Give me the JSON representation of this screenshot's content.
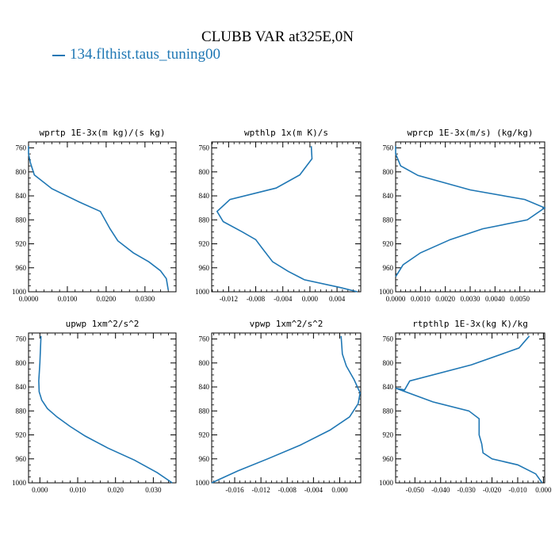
{
  "title": "CLUBB VAR at325E,0N",
  "legend": {
    "label": "134.flthist.taus_tuning00",
    "color": "#1f77b4"
  },
  "chart_data": [
    {
      "type": "line",
      "title": "wprtp  1E-3x(m kg)/(s kg)",
      "ylim": [
        1000,
        750
      ],
      "yticks": [
        760,
        800,
        840,
        880,
        920,
        960,
        1000
      ],
      "xlim": [
        0,
        0.038
      ],
      "xticks": [
        0,
        0.01,
        0.02,
        0.03
      ],
      "xticklabels": [
        "0.0000",
        "0.0100",
        "0.0200",
        "0.0300"
      ],
      "series": [
        {
          "x": [
            0.0,
            0.0,
            0.0005,
            0.0015,
            0.006,
            0.013,
            0.0185,
            0.021,
            0.023,
            0.027,
            0.031,
            0.034,
            0.0355,
            0.036
          ],
          "y": [
            757,
            770,
            785,
            805,
            828,
            850,
            866,
            895,
            915,
            935,
            950,
            965,
            978,
            997
          ]
        }
      ]
    },
    {
      "type": "line",
      "title": "wpthlp  1x(m K)/s",
      "ylim": [
        1000,
        750
      ],
      "yticks": [
        760,
        800,
        840,
        880,
        920,
        960,
        1000
      ],
      "xlim": [
        -0.0145,
        0.0075
      ],
      "xticks": [
        -0.012,
        -0.008,
        -0.004,
        0,
        0.004
      ],
      "xticklabels": [
        "-0.012",
        "-0.008",
        "-0.004",
        "0.000",
        "0.004"
      ],
      "series": [
        {
          "x": [
            0.0002,
            0.0003,
            -0.0015,
            -0.005,
            -0.0118,
            -0.0137,
            -0.0128,
            -0.01,
            -0.008,
            -0.007,
            -0.0055,
            -0.0032,
            -0.0008,
            0.0045,
            0.007
          ],
          "y": [
            757,
            778,
            805,
            827,
            846,
            866,
            883,
            900,
            913,
            928,
            950,
            966,
            980,
            993,
            1000
          ]
        }
      ]
    },
    {
      "type": "line",
      "title": "wprcp  1E-3x(m/s) (kg/kg)",
      "ylim": [
        1000,
        750
      ],
      "yticks": [
        760,
        800,
        840,
        880,
        920,
        960,
        1000
      ],
      "xlim": [
        0,
        0.006
      ],
      "xticks": [
        0,
        0.001,
        0.002,
        0.003,
        0.004,
        0.005
      ],
      "xticklabels": [
        "0.0000",
        "0.0010",
        "0.0020",
        "0.0030",
        "0.0040",
        "0.0050"
      ],
      "series": [
        {
          "x": [
            0.0,
            0.0,
            0.0002,
            0.0009,
            0.003,
            0.0052,
            0.006,
            0.0053,
            0.0035,
            0.0022,
            0.001,
            0.0003,
            0.0
          ],
          "y": [
            757,
            770,
            790,
            806,
            830,
            846,
            860,
            880,
            895,
            913,
            935,
            955,
            975
          ]
        }
      ]
    },
    {
      "type": "line",
      "title": "upwp  1xm^2/s^2",
      "ylim": [
        1000,
        750
      ],
      "yticks": [
        760,
        800,
        840,
        880,
        920,
        960,
        1000
      ],
      "xlim": [
        -0.003,
        0.036
      ],
      "xticks": [
        0,
        0.01,
        0.02,
        0.03
      ],
      "xticklabels": [
        "0.000",
        "0.010",
        "0.020",
        "0.030"
      ],
      "series": [
        {
          "x": [
            0.0003,
            0.0,
            -0.0003,
            -0.0002,
            0.0005,
            0.002,
            0.0045,
            0.008,
            0.012,
            0.018,
            0.025,
            0.031,
            0.035
          ],
          "y": [
            755,
            800,
            830,
            848,
            862,
            876,
            890,
            906,
            922,
            942,
            962,
            983,
            1000
          ]
        }
      ]
    },
    {
      "type": "line",
      "title": "vpwp  1xm^2/s^2",
      "ylim": [
        1000,
        750
      ],
      "yticks": [
        760,
        800,
        840,
        880,
        920,
        960,
        1000
      ],
      "xlim": [
        -0.0195,
        0.0032
      ],
      "xticks": [
        -0.016,
        -0.012,
        -0.008,
        -0.004,
        0
      ],
      "xticklabels": [
        "-0.016",
        "-0.012",
        "-0.008",
        "-0.004",
        "0.000"
      ],
      "series": [
        {
          "x": [
            0.0002,
            0.0004,
            0.001,
            0.0022,
            0.0031,
            0.0028,
            0.0015,
            -0.0015,
            -0.006,
            -0.011,
            -0.0155,
            -0.0195
          ],
          "y": [
            755,
            785,
            805,
            828,
            850,
            868,
            890,
            912,
            937,
            960,
            980,
            1000
          ]
        }
      ]
    },
    {
      "type": "line",
      "title": "rtpthlp  1E-3x(kg K)/kg",
      "ylim": [
        1000,
        750
      ],
      "yticks": [
        760,
        800,
        840,
        880,
        920,
        960,
        1000
      ],
      "xlim": [
        -0.0575,
        0.0005
      ],
      "xticks": [
        -0.05,
        -0.04,
        -0.03,
        -0.02,
        -0.01,
        0
      ],
      "xticklabels": [
        "-0.050",
        "-0.040",
        "-0.030",
        "-0.020",
        "-0.010",
        "0.000"
      ],
      "series": [
        {
          "x": [
            -0.0055,
            -0.0095,
            -0.028,
            -0.052,
            -0.054,
            -0.0575,
            -0.043,
            -0.029,
            -0.025,
            -0.025,
            -0.024,
            -0.0235,
            -0.02,
            -0.01,
            -0.003,
            -0.0005
          ],
          "y": [
            755,
            775,
            803,
            830,
            845,
            842,
            865,
            880,
            893,
            920,
            935,
            950,
            960,
            970,
            985,
            1000
          ]
        }
      ]
    }
  ]
}
